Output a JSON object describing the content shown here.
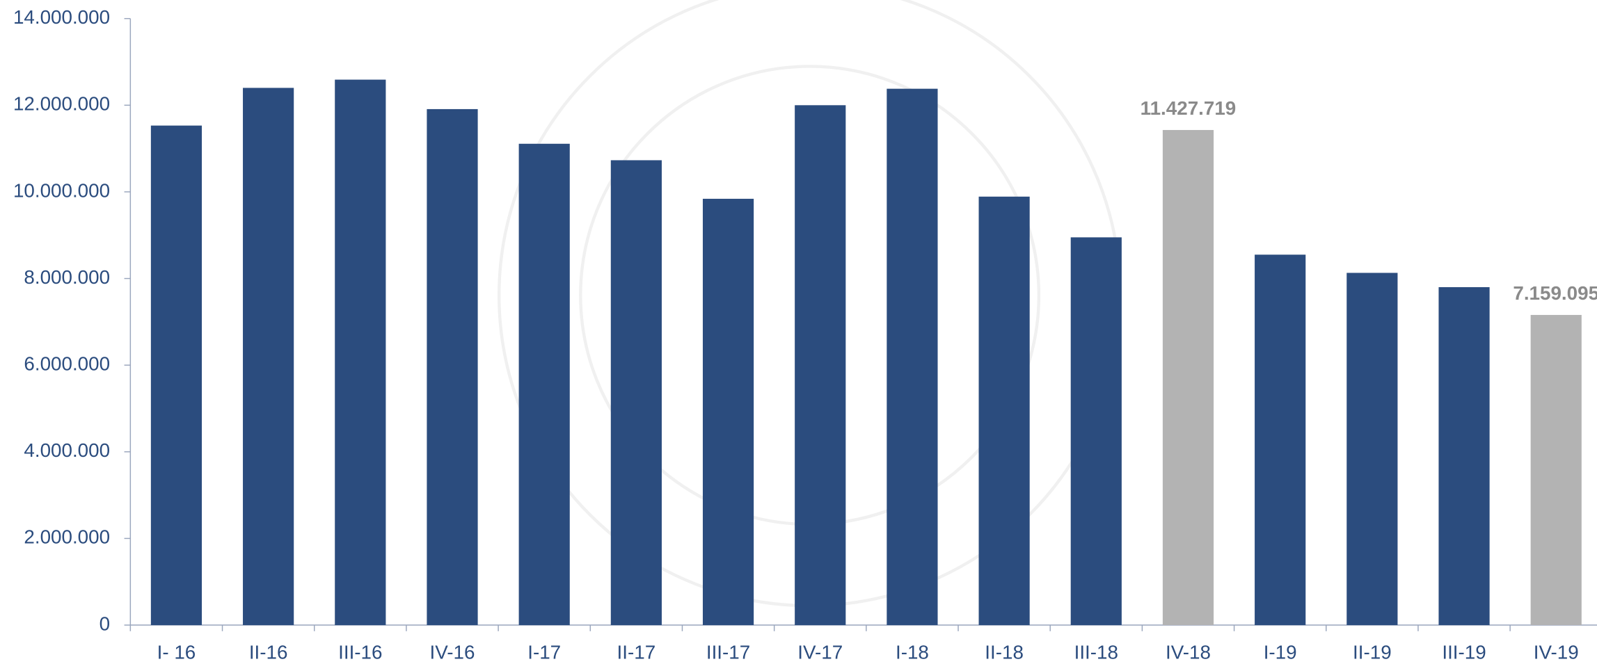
{
  "chart_data": {
    "type": "bar",
    "categories": [
      "I- 16",
      "II-16",
      "III-16",
      "IV-16",
      "I-17",
      "II-17",
      "III-17",
      "IV-17",
      "I-18",
      "II-18",
      "III-18",
      "IV-18",
      "I-19",
      "II-19",
      "III-19",
      "IV-19"
    ],
    "values": [
      11530000,
      12400000,
      12590000,
      11910000,
      11110000,
      10730000,
      9840000,
      12000000,
      12380000,
      9890000,
      8950000,
      11427719,
      8550000,
      8130000,
      7800000,
      7159095
    ],
    "value_labels": [
      null,
      null,
      null,
      null,
      null,
      null,
      null,
      null,
      null,
      null,
      null,
      "11.427.719",
      null,
      null,
      null,
      "7.159.095"
    ],
    "colors": [
      "#2b4c7e",
      "#2b4c7e",
      "#2b4c7e",
      "#2b4c7e",
      "#2b4c7e",
      "#2b4c7e",
      "#2b4c7e",
      "#2b4c7e",
      "#2b4c7e",
      "#2b4c7e",
      "#2b4c7e",
      "#b3b3b3",
      "#2b4c7e",
      "#2b4c7e",
      "#2b4c7e",
      "#b3b3b3"
    ],
    "ylim": [
      0,
      14000000
    ],
    "yticks": [
      0,
      {
        "value": 2000000,
        "label": "2.000.000"
      },
      {
        "value": 4000000,
        "label": "4.000.000"
      },
      {
        "value": 6000000,
        "label": "6.000.000"
      },
      {
        "value": 8000000,
        "label": "8.000.000"
      },
      {
        "value": 10000000,
        "label": "10.000.000"
      },
      {
        "value": 12000000,
        "label": "12.000.000"
      },
      {
        "value": 14000000,
        "label": "14.000.000"
      }
    ],
    "grid": false
  }
}
